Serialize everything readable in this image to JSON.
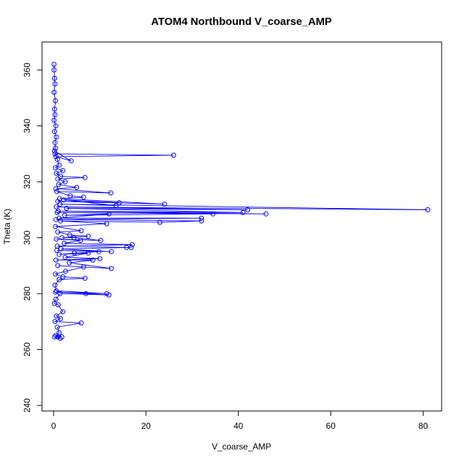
{
  "chart_data": {
    "type": "line",
    "title": "ATOM4 Northbound V_coarse_AMP",
    "xlabel": "V_coarse_AMP",
    "ylabel": "Theta (K)",
    "xlim": [
      -2.5,
      84
    ],
    "ylim": [
      238,
      370
    ],
    "x_ticks": [
      0,
      20,
      40,
      60,
      80
    ],
    "y_ticks": [
      240,
      260,
      280,
      300,
      320,
      340,
      360
    ],
    "grid": false,
    "marker": "open-circle",
    "line_color": "#0000ff",
    "series": [
      {
        "values": [
          [
            0.1,
            362
          ],
          [
            0.1,
            360
          ],
          [
            0.2,
            357
          ],
          [
            0.3,
            355
          ],
          [
            0.1,
            352
          ],
          [
            0.4,
            349
          ],
          [
            0.2,
            346
          ],
          [
            0.3,
            344
          ],
          [
            0.1,
            342
          ],
          [
            0.5,
            340
          ],
          [
            0.2,
            338
          ],
          [
            0.6,
            336
          ],
          [
            0.3,
            334
          ],
          [
            0.4,
            332
          ],
          [
            0.2,
            331
          ],
          [
            3.8,
            327.5
          ],
          [
            0.5,
            329
          ],
          [
            26.0,
            329.5
          ],
          [
            0.3,
            330
          ],
          [
            0.8,
            328
          ],
          [
            1.2,
            326
          ],
          [
            0.4,
            325
          ],
          [
            2.0,
            324
          ],
          [
            0.6,
            323
          ],
          [
            1.5,
            322
          ],
          [
            6.8,
            321.5
          ],
          [
            0.9,
            321
          ],
          [
            2.5,
            320
          ],
          [
            1.1,
            319
          ],
          [
            5.0,
            318
          ],
          [
            0.5,
            317.5
          ],
          [
            12.4,
            316
          ],
          [
            0.7,
            316.5
          ],
          [
            3.6,
            315
          ],
          [
            6.5,
            314.5
          ],
          [
            1.3,
            314
          ],
          [
            24.0,
            312
          ],
          [
            0.9,
            313
          ],
          [
            14.2,
            312.5
          ],
          [
            2.2,
            313.5
          ],
          [
            13.5,
            311.5
          ],
          [
            1.4,
            312
          ],
          [
            81.0,
            310
          ],
          [
            0.6,
            311
          ],
          [
            42.0,
            310
          ],
          [
            2.8,
            310.5
          ],
          [
            41.0,
            309
          ],
          [
            1.0,
            309.5
          ],
          [
            46.0,
            308.5
          ],
          [
            0.8,
            309
          ],
          [
            34.5,
            308.5
          ],
          [
            2.4,
            308
          ],
          [
            12.0,
            308.5
          ],
          [
            1.2,
            307
          ],
          [
            32.0,
            307
          ],
          [
            0.5,
            306.5
          ],
          [
            32.0,
            306
          ],
          [
            23.0,
            305.5
          ],
          [
            1.5,
            306
          ],
          [
            11.5,
            305
          ],
          [
            0.4,
            304
          ],
          [
            6.0,
            302.5
          ],
          [
            0.9,
            302
          ],
          [
            3.5,
            301
          ],
          [
            7.5,
            300.5
          ],
          [
            1.8,
            300
          ],
          [
            4.4,
            300
          ],
          [
            10.2,
            299
          ],
          [
            0.6,
            299.5
          ],
          [
            5.8,
            299
          ],
          [
            2.3,
            298
          ],
          [
            17.0,
            297.5
          ],
          [
            0.8,
            297
          ],
          [
            15.8,
            296.5
          ],
          [
            16.8,
            296.5
          ],
          [
            1.6,
            296
          ],
          [
            12.5,
            295
          ],
          [
            0.7,
            295.5
          ],
          [
            9.8,
            295
          ],
          [
            4.5,
            294.5
          ],
          [
            1.2,
            294
          ],
          [
            7.5,
            294.5
          ],
          [
            2.5,
            293
          ],
          [
            10.0,
            292.5
          ],
          [
            0.5,
            292
          ],
          [
            8.5,
            292
          ],
          [
            3.4,
            291
          ],
          [
            12.5,
            289
          ],
          [
            0.9,
            290
          ],
          [
            6.5,
            289.5
          ],
          [
            2.6,
            288
          ],
          [
            0.4,
            287
          ],
          [
            2.0,
            286
          ],
          [
            6.8,
            285.5
          ],
          [
            1.2,
            285
          ],
          [
            0.3,
            283
          ],
          [
            0.6,
            281
          ],
          [
            11.5,
            280
          ],
          [
            0.4,
            280.5
          ],
          [
            7.0,
            280
          ],
          [
            12.0,
            279.5
          ],
          [
            1.4,
            280
          ],
          [
            0.5,
            278
          ],
          [
            0.2,
            276.5
          ],
          [
            1.0,
            276
          ],
          [
            2.0,
            273.5
          ],
          [
            0.6,
            272
          ],
          [
            1.5,
            271
          ],
          [
            0.3,
            270
          ],
          [
            6.0,
            269.5
          ],
          [
            0.8,
            268
          ],
          [
            1.2,
            266
          ],
          [
            0.5,
            265
          ],
          [
            1.8,
            264.5
          ],
          [
            0.2,
            264.5
          ],
          [
            1.4,
            264
          ],
          [
            0.9,
            264.5
          ]
        ]
      }
    ]
  }
}
